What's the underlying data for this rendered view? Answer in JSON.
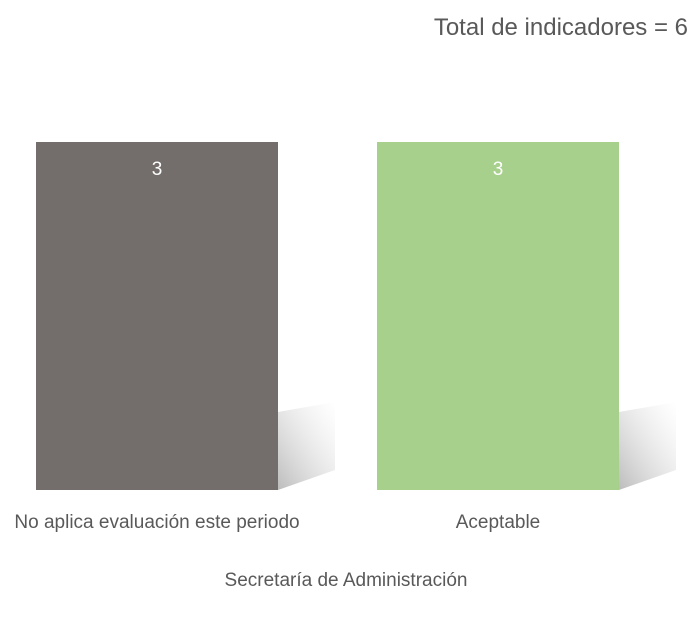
{
  "chart_data": {
    "type": "bar",
    "title": "Total de indicadores = 6",
    "categories": [
      "No aplica evaluación este periodo",
      "Aceptable"
    ],
    "values": [
      3,
      3
    ],
    "colors": [
      "#736e6b",
      "#a8d08d"
    ],
    "xlabel": "Secretaría de Administración"
  }
}
